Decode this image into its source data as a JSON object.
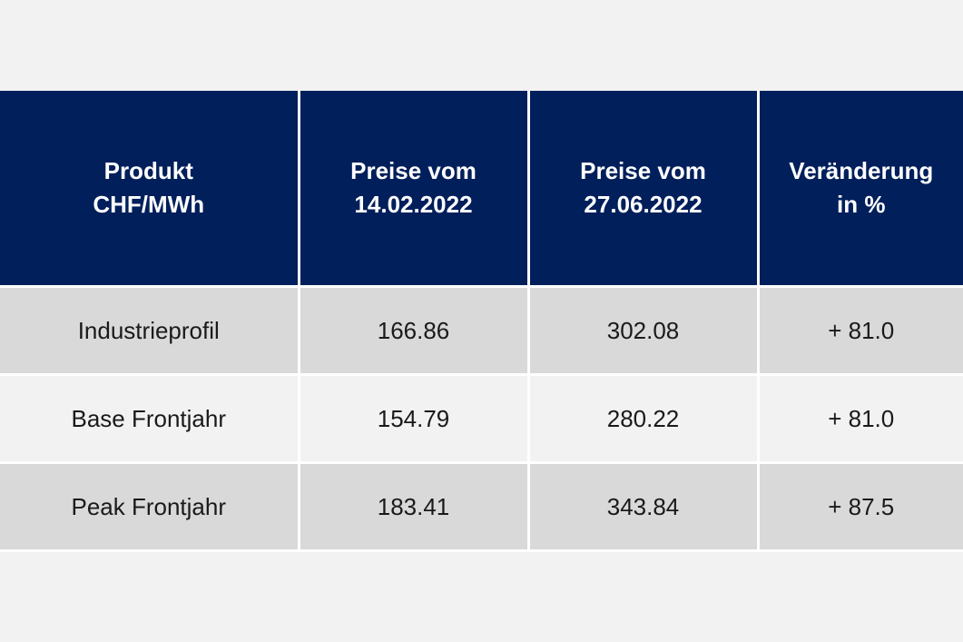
{
  "table": {
    "headers": [
      [
        "Produkt",
        "CHF/MWh"
      ],
      [
        "Preise vom",
        "14.02.2022"
      ],
      [
        "Preise vom",
        "27.06.2022"
      ],
      [
        "Veränderung",
        "in %"
      ]
    ],
    "rows": [
      [
        "Industrieprofil",
        "166.86",
        "302.08",
        "+ 81.0"
      ],
      [
        "Base Frontjahr",
        "154.79",
        "280.22",
        "+ 81.0"
      ],
      [
        "Peak Frontjahr",
        "183.41",
        "343.84",
        "+ 87.5"
      ]
    ],
    "colors": {
      "header_bg": "#001f5b",
      "header_text": "#ffffff",
      "row_shaded": "#d9d9d9",
      "row_light": "#f2f2f2"
    }
  }
}
